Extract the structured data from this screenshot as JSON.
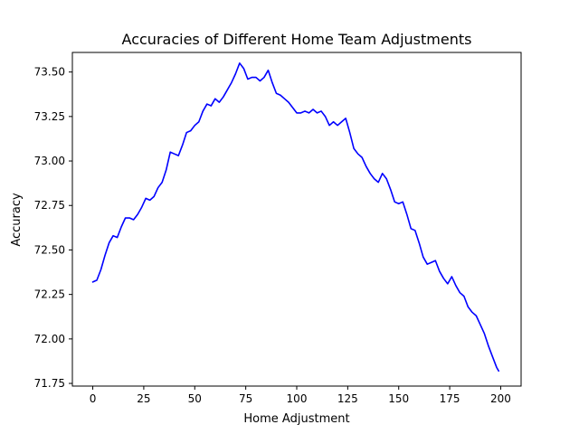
{
  "chart_data": {
    "type": "line",
    "title": "Accuracies of Different Home Team Adjustments",
    "xlabel": "Home Adjustment",
    "ylabel": "Accuracy",
    "xlim": [
      -10,
      210
    ],
    "ylim": [
      71.735,
      73.61
    ],
    "xticks": [
      0,
      25,
      50,
      75,
      100,
      125,
      150,
      175,
      200
    ],
    "yticks": [
      71.75,
      72.0,
      72.25,
      72.5,
      72.75,
      73.0,
      73.25,
      73.5
    ],
    "ytick_labels": [
      "71.75",
      "72.00",
      "72.25",
      "72.50",
      "72.75",
      "73.00",
      "73.25",
      "73.50"
    ],
    "grid": false,
    "line_color": "#0000ff",
    "x": [
      0,
      2,
      4,
      6,
      8,
      10,
      12,
      14,
      16,
      18,
      20,
      22,
      24,
      26,
      28,
      30,
      32,
      34,
      36,
      38,
      40,
      42,
      44,
      46,
      48,
      50,
      52,
      54,
      56,
      58,
      60,
      62,
      64,
      66,
      68,
      70,
      72,
      74,
      76,
      78,
      80,
      82,
      84,
      86,
      88,
      90,
      92,
      94,
      96,
      98,
      100,
      102,
      104,
      106,
      108,
      110,
      112,
      114,
      116,
      118,
      120,
      122,
      124,
      126,
      128,
      130,
      132,
      134,
      136,
      138,
      140,
      142,
      144,
      146,
      148,
      150,
      152,
      154,
      156,
      158,
      160,
      162,
      164,
      166,
      168,
      170,
      172,
      174,
      176,
      178,
      180,
      182,
      184,
      186,
      188,
      190,
      192,
      194,
      196,
      198,
      199
    ],
    "y": [
      72.32,
      72.33,
      72.39,
      72.47,
      72.54,
      72.58,
      72.57,
      72.63,
      72.68,
      72.68,
      72.67,
      72.7,
      72.74,
      72.79,
      72.78,
      72.8,
      72.85,
      72.88,
      72.95,
      73.05,
      73.04,
      73.03,
      73.09,
      73.16,
      73.17,
      73.2,
      73.22,
      73.28,
      73.32,
      73.31,
      73.35,
      73.33,
      73.36,
      73.4,
      73.44,
      73.49,
      73.55,
      73.52,
      73.46,
      73.47,
      73.47,
      73.45,
      73.47,
      73.51,
      73.44,
      73.38,
      73.37,
      73.35,
      73.33,
      73.3,
      73.27,
      73.27,
      73.28,
      73.27,
      73.29,
      73.27,
      73.28,
      73.25,
      73.2,
      73.22,
      73.2,
      73.22,
      73.24,
      73.16,
      73.07,
      73.04,
      73.02,
      72.97,
      72.93,
      72.9,
      72.88,
      72.93,
      72.9,
      72.84,
      72.77,
      72.76,
      72.77,
      72.7,
      72.62,
      72.61,
      72.54,
      72.46,
      72.42,
      72.43,
      72.44,
      72.38,
      72.34,
      72.31,
      72.35,
      72.3,
      72.26,
      72.24,
      72.18,
      72.15,
      72.13,
      72.08,
      72.03,
      71.96,
      71.9,
      71.84,
      71.82
    ]
  }
}
